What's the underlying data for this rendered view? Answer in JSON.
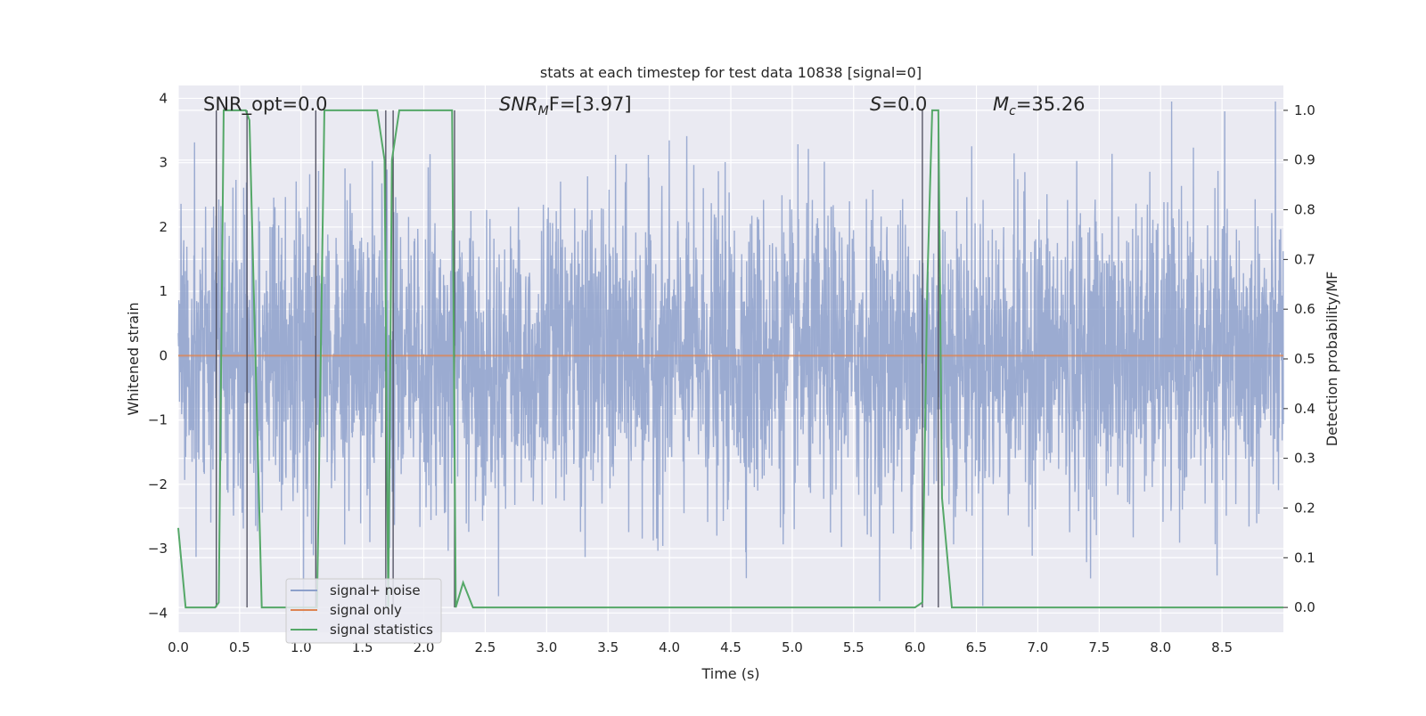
{
  "chart_data": {
    "type": "line",
    "title": "stats at each timestep for test data 10838 [signal=0]",
    "xlabel": "Time (s)",
    "ylabel_left": "Whitened strain",
    "ylabel_right": "Detection probability/MF",
    "xlim": [
      0.0,
      9.0
    ],
    "ylim_left": [
      -4.3,
      4.2
    ],
    "ylim_right": [
      -0.05,
      1.05
    ],
    "x_ticks": [
      "0.0",
      "0.5",
      "1.0",
      "1.5",
      "2.0",
      "2.5",
      "3.0",
      "3.5",
      "4.0",
      "4.5",
      "5.0",
      "5.5",
      "6.0",
      "6.5",
      "7.0",
      "7.5",
      "8.0",
      "8.5"
    ],
    "y_ticks_left": [
      "−4",
      "−3",
      "−2",
      "−1",
      "0",
      "1",
      "2",
      "3",
      "4"
    ],
    "y_ticks_right": [
      "0.0",
      "0.1",
      "0.2",
      "0.3",
      "0.4",
      "0.5",
      "0.6",
      "0.7",
      "0.8",
      "0.9",
      "1.0"
    ],
    "grid": true,
    "legend_position": "lower-left",
    "annotations": {
      "snr_opt": "SNR_opt=0.0",
      "snr_mf_prefix": "SNR",
      "snr_mf_sub": "M",
      "snr_mf_suffix": "F=[3.97]",
      "s_var": "S",
      "s_value": "=0.0",
      "mc_var": "M",
      "mc_sub": "c",
      "mc_value": "=35.26"
    },
    "series": [
      {
        "name": "signal+ noise",
        "color": "#8da0cb",
        "note_values": "dense whitened-noise trace, amplitude roughly ±2.5 with spikes to ±4"
      },
      {
        "name": "signal only",
        "color": "#dd8452",
        "y_constant": 0.0
      },
      {
        "name": "signal statistics",
        "color": "#55a868",
        "axis": "right",
        "x": [
          0.0,
          0.06,
          0.14,
          0.22,
          0.3,
          0.33,
          0.37,
          0.55,
          0.58,
          0.68,
          0.7,
          1.13,
          1.19,
          1.45,
          1.62,
          1.68,
          1.71,
          1.74,
          1.8,
          1.9,
          2.1,
          2.23,
          2.26,
          2.32,
          2.4,
          6.0,
          6.06,
          6.1,
          6.14,
          6.19,
          6.22,
          6.3,
          9.0
        ],
        "y": [
          0.16,
          0.0,
          0.0,
          0.0,
          0.0,
          0.01,
          1.0,
          1.0,
          0.98,
          0.0,
          0.0,
          0.0,
          1.0,
          1.0,
          1.0,
          0.9,
          0.0,
          0.9,
          1.0,
          1.0,
          1.0,
          1.0,
          0.0,
          0.05,
          0.0,
          0.0,
          0.01,
          0.65,
          1.0,
          1.0,
          0.22,
          0.0,
          0.0
        ]
      }
    ],
    "event_markers_x": [
      0.31,
      0.56,
      1.12,
      1.69,
      1.75,
      2.25,
      6.06,
      6.19
    ],
    "colors": {
      "plot_background": "#eaeaf2",
      "grid": "#ffffff",
      "event_line": "#4c4c5c",
      "text": "#262626"
    }
  }
}
